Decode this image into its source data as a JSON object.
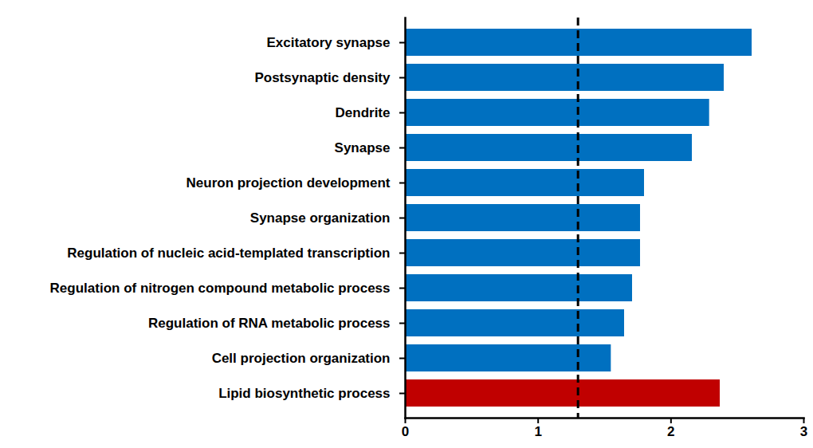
{
  "chart_data": {
    "type": "bar",
    "orientation": "horizontal",
    "categories": [
      "Excitatory synapse",
      "Postsynaptic density",
      "Dendrite",
      "Synapse",
      "Neuron projection development",
      "Synapse organization",
      "Regulation of nucleic acid-templated transcription",
      "Regulation of nitrogen compound metabolic process",
      "Regulation of RNA metabolic process",
      "Cell projection organization",
      "Lipid biosynthetic process"
    ],
    "values": [
      2.61,
      2.4,
      2.29,
      2.16,
      1.8,
      1.77,
      1.77,
      1.71,
      1.65,
      1.55,
      2.37
    ],
    "colors": [
      "#0070c0",
      "#0070c0",
      "#0070c0",
      "#0070c0",
      "#0070c0",
      "#0070c0",
      "#0070c0",
      "#0070c0",
      "#0070c0",
      "#0070c0",
      "#c00000"
    ],
    "xlim": [
      0,
      3
    ],
    "xticks": [
      0,
      1,
      2,
      3
    ],
    "threshold": 1.3,
    "grid": false
  }
}
